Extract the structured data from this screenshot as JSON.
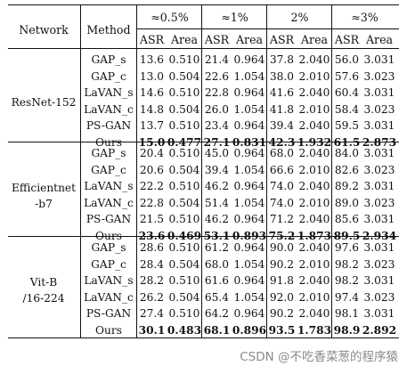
{
  "header": {
    "network": "Network",
    "method": "Method",
    "groups": [
      "≈0.5%",
      "≈1%",
      "2%",
      "≈3%"
    ],
    "asr": "ASR",
    "area": "Area"
  },
  "sections": [
    {
      "network_lines": [
        "ResNet-152"
      ],
      "rows": [
        {
          "method": "GAP_s",
          "values": [
            "13.6",
            "0.510",
            "21.4",
            "0.964",
            "37.8",
            "2.040",
            "56.0",
            "3.031"
          ],
          "bold": false
        },
        {
          "method": "GAP_c",
          "values": [
            "13.0",
            "0.504",
            "22.6",
            "1.054",
            "38.0",
            "2.010",
            "57.6",
            "3.023"
          ],
          "bold": false
        },
        {
          "method": "LaVAN_s",
          "values": [
            "14.6",
            "0.510",
            "22.8",
            "0.964",
            "41.6",
            "2.040",
            "60.4",
            "3.031"
          ],
          "bold": false
        },
        {
          "method": "LaVAN_c",
          "values": [
            "14.8",
            "0.504",
            "26.0",
            "1.054",
            "41.8",
            "2.010",
            "58.4",
            "3.023"
          ],
          "bold": false
        },
        {
          "method": "PS-GAN",
          "values": [
            "13.7",
            "0.510",
            "23.4",
            "0.964",
            "39.4",
            "2.040",
            "59.5",
            "3.031"
          ],
          "bold": false
        },
        {
          "method": "Ours",
          "values": [
            "15.0",
            "0.477",
            "27.1",
            "0.831",
            "42.3",
            "1.932",
            "61.5",
            "2.873"
          ],
          "bold": true
        }
      ]
    },
    {
      "network_lines": [
        "Efficientnet",
        "-b7"
      ],
      "rows": [
        {
          "method": "GAP_s",
          "values": [
            "20.4",
            "0.510",
            "45.0",
            "0.964",
            "68.0",
            "2.040",
            "84.0",
            "3.031"
          ],
          "bold": false
        },
        {
          "method": "GAP_c",
          "values": [
            "20.6",
            "0.504",
            "39.4",
            "1.054",
            "66.6",
            "2.010",
            "82.6",
            "3.023"
          ],
          "bold": false
        },
        {
          "method": "LaVAN_s",
          "values": [
            "22.2",
            "0.510",
            "46.2",
            "0.964",
            "74.0",
            "2.040",
            "89.2",
            "3.031"
          ],
          "bold": false
        },
        {
          "method": "LaVAN_c",
          "values": [
            "22.8",
            "0.504",
            "51.4",
            "1.054",
            "74.0",
            "2.010",
            "89.0",
            "3.023"
          ],
          "bold": false
        },
        {
          "method": "PS-GAN",
          "values": [
            "21.5",
            "0.510",
            "46.2",
            "0.964",
            "71.2",
            "2.040",
            "85.6",
            "3.031"
          ],
          "bold": false
        },
        {
          "method": "Ours",
          "values": [
            "23.6",
            "0.469",
            "53.1",
            "0.893",
            "75.2",
            "1.873",
            "89.5",
            "2.934"
          ],
          "bold": true
        }
      ]
    },
    {
      "network_lines": [
        "Vit-B",
        "/16-224"
      ],
      "rows": [
        {
          "method": "GAP_s",
          "values": [
            "28.6",
            "0.510",
            "61.2",
            "0.964",
            "90.0",
            "2.040",
            "97.6",
            "3.031"
          ],
          "bold": false
        },
        {
          "method": "GAP_c",
          "values": [
            "28.4",
            "0.504",
            "68.0",
            "1.054",
            "90.2",
            "2.010",
            "98.2",
            "3.023"
          ],
          "bold": false
        },
        {
          "method": "LaVAN_s",
          "values": [
            "28.2",
            "0.510",
            "61.6",
            "0.964",
            "91.8",
            "2.040",
            "98.2",
            "3.031"
          ],
          "bold": false
        },
        {
          "method": "LaVAN_c",
          "values": [
            "26.2",
            "0.504",
            "65.4",
            "1.054",
            "92.0",
            "2.010",
            "97.4",
            "3.023"
          ],
          "bold": false
        },
        {
          "method": "PS-GAN",
          "values": [
            "27.4",
            "0.510",
            "64.2",
            "0.964",
            "90.2",
            "2.040",
            "98.1",
            "3.031"
          ],
          "bold": false
        },
        {
          "method": "Ours",
          "values": [
            "30.1",
            "0.483",
            "68.1",
            "0.896",
            "93.5",
            "1.783",
            "98.9",
            "2.892"
          ],
          "bold": true
        }
      ]
    }
  ],
  "watermark": "CSDN @不吃香菜葱的程序猿"
}
